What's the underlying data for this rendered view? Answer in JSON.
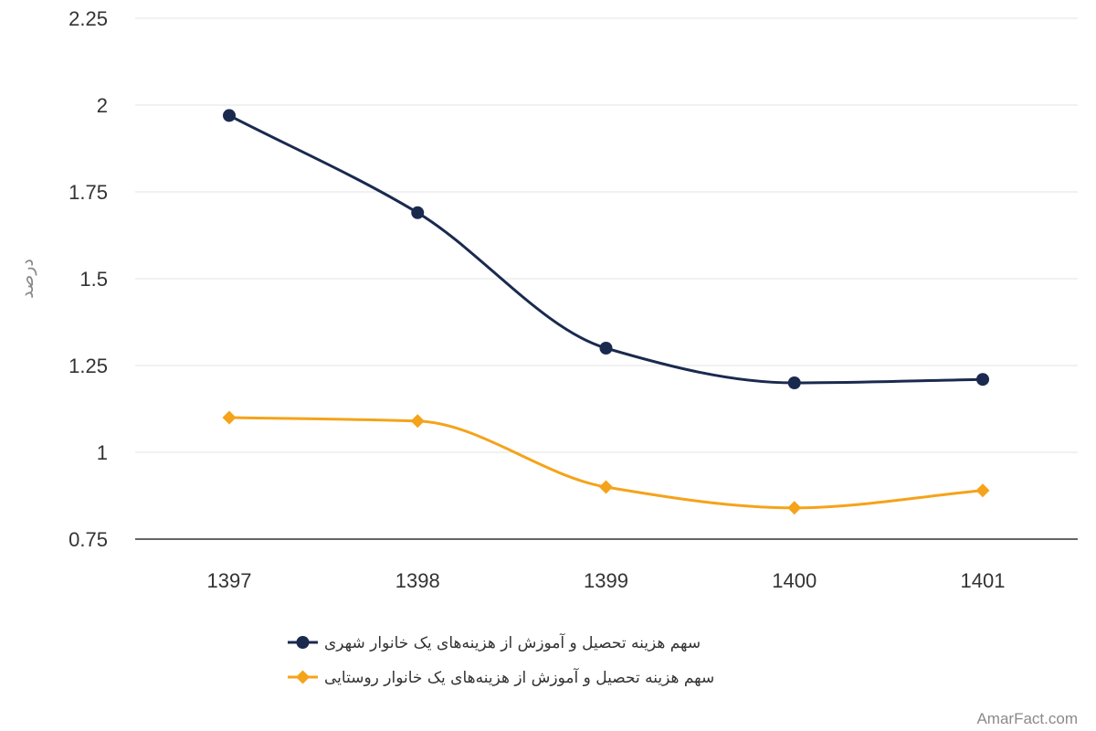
{
  "chart_data": {
    "type": "line",
    "smooth": true,
    "categories": [
      "1397",
      "1398",
      "1399",
      "1400",
      "1401"
    ],
    "series": [
      {
        "name": "سهم هزینه تحصیل و آموزش از هزینه‌های یک خانوار شهری",
        "values": [
          1.97,
          1.69,
          1.3,
          1.2,
          1.21
        ],
        "color": "#1a2a4f",
        "marker": "circle"
      },
      {
        "name": "سهم هزینه تحصیل و آموزش از هزینه‌های یک خانوار روستایی",
        "values": [
          1.1,
          1.09,
          0.9,
          0.84,
          0.89
        ],
        "color": "#f5a31a",
        "marker": "diamond"
      }
    ],
    "ylabel": "درصد",
    "ylim": [
      0.75,
      2.25
    ],
    "yticks": [
      "0.75",
      "1",
      "1.25",
      "1.5",
      "1.75",
      "2",
      "2.25"
    ],
    "grid": true,
    "legend_position": "bottom"
  },
  "watermark": "AmarFact.com"
}
